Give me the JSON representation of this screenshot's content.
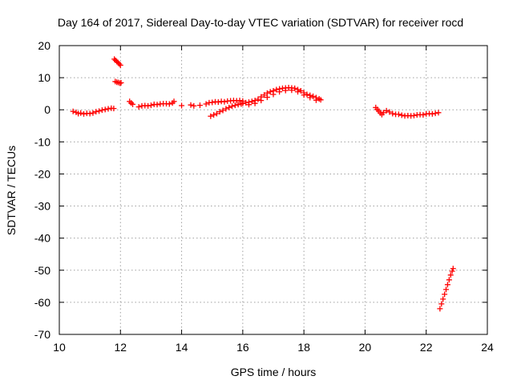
{
  "chart_data": {
    "type": "scatter",
    "title": "Day 164 of 2017, Sidereal Day-to-day VTEC variation (SDTVAR) for receiver rocd",
    "xlabel": "GPS time / hours",
    "ylabel": "SDTVAR / TECUs",
    "xlim": [
      10,
      24
    ],
    "ylim": [
      -70,
      20
    ],
    "xticks": [
      10,
      12,
      14,
      16,
      18,
      20,
      22,
      24
    ],
    "yticks": [
      20,
      10,
      0,
      -10,
      -20,
      -30,
      -40,
      -50,
      -60,
      -70
    ],
    "grid": true,
    "point_color": "#ff0000",
    "marker": "plus",
    "series": [
      {
        "name": "SDTVAR",
        "points": [
          [
            10.45,
            -0.5
          ],
          [
            10.55,
            -0.8
          ],
          [
            10.62,
            -1.2
          ],
          [
            10.7,
            -1.0
          ],
          [
            10.8,
            -1.3
          ],
          [
            10.9,
            -1.1
          ],
          [
            11.0,
            -1.2
          ],
          [
            11.1,
            -1.0
          ],
          [
            11.2,
            -0.6
          ],
          [
            11.3,
            -0.4
          ],
          [
            11.4,
            -0.1
          ],
          [
            11.5,
            0.1
          ],
          [
            11.6,
            0.3
          ],
          [
            11.7,
            0.5
          ],
          [
            11.78,
            0.4
          ],
          [
            11.8,
            15.8
          ],
          [
            11.84,
            15.4
          ],
          [
            11.88,
            15.0
          ],
          [
            11.92,
            14.7
          ],
          [
            11.96,
            14.3
          ],
          [
            12.0,
            13.9
          ],
          [
            11.83,
            8.8
          ],
          [
            11.88,
            8.6
          ],
          [
            11.93,
            8.5
          ],
          [
            11.98,
            8.3
          ],
          [
            12.02,
            8.4
          ],
          [
            12.3,
            2.6
          ],
          [
            12.35,
            2.1
          ],
          [
            12.4,
            1.7
          ],
          [
            12.6,
            0.9
          ],
          [
            12.7,
            1.2
          ],
          [
            12.8,
            1.3
          ],
          [
            12.9,
            1.2
          ],
          [
            13.0,
            1.4
          ],
          [
            13.1,
            1.7
          ],
          [
            13.2,
            1.6
          ],
          [
            13.3,
            1.8
          ],
          [
            13.4,
            1.9
          ],
          [
            13.5,
            1.9
          ],
          [
            13.6,
            1.8
          ],
          [
            13.7,
            2.1
          ],
          [
            13.75,
            2.6
          ],
          [
            14.0,
            1.3
          ],
          [
            14.3,
            1.5
          ],
          [
            14.4,
            1.2
          ],
          [
            14.6,
            1.4
          ],
          [
            14.8,
            1.8
          ],
          [
            14.9,
            2.2
          ],
          [
            15.0,
            2.3
          ],
          [
            15.1,
            2.5
          ],
          [
            15.2,
            2.4
          ],
          [
            15.3,
            2.6
          ],
          [
            15.4,
            2.5
          ],
          [
            15.5,
            2.7
          ],
          [
            15.6,
            2.8
          ],
          [
            15.7,
            2.9
          ],
          [
            15.8,
            2.8
          ],
          [
            15.9,
            2.9
          ],
          [
            16.0,
            2.7
          ],
          [
            14.95,
            -2.0
          ],
          [
            15.05,
            -1.6
          ],
          [
            15.15,
            -1.2
          ],
          [
            15.25,
            -0.6
          ],
          [
            15.35,
            -0.2
          ],
          [
            15.45,
            0.3
          ],
          [
            15.55,
            0.7
          ],
          [
            15.65,
            1.1
          ],
          [
            15.75,
            1.4
          ],
          [
            15.85,
            1.6
          ],
          [
            15.95,
            1.8
          ],
          [
            16.0,
            2.0
          ],
          [
            16.1,
            2.2
          ],
          [
            16.2,
            2.4
          ],
          [
            16.3,
            2.6
          ],
          [
            16.4,
            2.9
          ],
          [
            16.5,
            3.3
          ],
          [
            16.6,
            4.0
          ],
          [
            16.7,
            4.6
          ],
          [
            16.8,
            5.2
          ],
          [
            16.9,
            5.6
          ],
          [
            17.0,
            5.9
          ],
          [
            17.1,
            6.3
          ],
          [
            17.2,
            6.5
          ],
          [
            17.3,
            6.7
          ],
          [
            17.4,
            6.8
          ],
          [
            17.5,
            6.9
          ],
          [
            17.6,
            6.8
          ],
          [
            17.7,
            6.7
          ],
          [
            17.8,
            6.3
          ],
          [
            17.9,
            5.9
          ],
          [
            18.0,
            5.3
          ],
          [
            18.1,
            4.8
          ],
          [
            18.2,
            4.5
          ],
          [
            18.3,
            4.2
          ],
          [
            18.4,
            3.8
          ],
          [
            18.5,
            3.4
          ],
          [
            18.55,
            3.1
          ],
          [
            16.2,
            1.6
          ],
          [
            16.4,
            2.0
          ],
          [
            16.6,
            2.9
          ],
          [
            16.8,
            3.9
          ],
          [
            17.0,
            4.8
          ],
          [
            17.2,
            5.6
          ],
          [
            17.4,
            6.0
          ],
          [
            17.6,
            6.1
          ],
          [
            17.8,
            5.6
          ],
          [
            18.0,
            4.6
          ],
          [
            18.2,
            3.8
          ],
          [
            18.4,
            3.0
          ],
          [
            20.35,
            0.7
          ],
          [
            20.4,
            0.1
          ],
          [
            20.45,
            -0.4
          ],
          [
            20.5,
            -1.0
          ],
          [
            20.55,
            -1.5
          ],
          [
            20.6,
            -0.9
          ],
          [
            20.7,
            -0.3
          ],
          [
            20.8,
            -0.7
          ],
          [
            20.9,
            -1.2
          ],
          [
            21.0,
            -1.4
          ],
          [
            21.1,
            -1.4
          ],
          [
            21.2,
            -1.7
          ],
          [
            21.3,
            -1.9
          ],
          [
            21.4,
            -1.8
          ],
          [
            21.5,
            -1.9
          ],
          [
            21.6,
            -1.8
          ],
          [
            21.7,
            -1.6
          ],
          [
            21.8,
            -1.5
          ],
          [
            21.9,
            -1.6
          ],
          [
            22.0,
            -1.3
          ],
          [
            22.1,
            -1.2
          ],
          [
            22.2,
            -1.3
          ],
          [
            22.3,
            -1.1
          ],
          [
            22.4,
            -0.9
          ],
          [
            22.45,
            -62.0
          ],
          [
            22.5,
            -60.5
          ],
          [
            22.55,
            -59.0
          ],
          [
            22.6,
            -57.5
          ],
          [
            22.65,
            -56.0
          ],
          [
            22.7,
            -54.5
          ],
          [
            22.75,
            -53.0
          ],
          [
            22.8,
            -51.5
          ],
          [
            22.85,
            -50.3
          ],
          [
            22.88,
            -49.5
          ]
        ]
      }
    ]
  }
}
